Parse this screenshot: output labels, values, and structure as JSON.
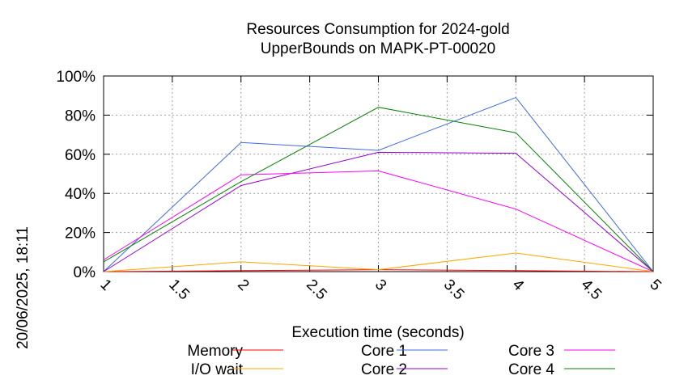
{
  "chart_data": {
    "type": "line",
    "title": [
      "Resources Consumption for 2024-gold",
      "UpperBounds on MAPK-PT-00020"
    ],
    "xlabel": "Execution time (seconds)",
    "ylabel": "",
    "side_label": "20/06/2025, 18:11",
    "xlim": [
      1,
      5
    ],
    "ylim": [
      0,
      100
    ],
    "x_ticks": [
      1,
      1.5,
      2,
      2.5,
      3,
      3.5,
      4,
      4.5,
      5
    ],
    "x_tick_labels": [
      "1",
      "1.5",
      "2",
      "2.5",
      "3",
      "3.5",
      "4",
      "4.5",
      "5"
    ],
    "y_ticks": [
      0,
      20,
      40,
      60,
      80,
      100
    ],
    "y_tick_labels": [
      "0%",
      "20%",
      "40%",
      "60%",
      "80%",
      "100%"
    ],
    "grid": true,
    "legend_position": "bottom",
    "series": [
      {
        "name": "Memory",
        "color": "#ff0000",
        "x": [
          1,
          2,
          3,
          4,
          5
        ],
        "y": [
          0,
          0.5,
          1,
          0.5,
          0
        ]
      },
      {
        "name": "I/O wait",
        "color": "#ffa500",
        "x": [
          1,
          2,
          3,
          4,
          5
        ],
        "y": [
          0,
          5,
          1,
          9.5,
          0
        ]
      },
      {
        "name": "Core 1",
        "color": "#4169e1",
        "x": [
          1,
          2,
          3,
          4,
          5
        ],
        "y": [
          0,
          66,
          62,
          89,
          0
        ]
      },
      {
        "name": "Core 2",
        "color": "#9400d3",
        "x": [
          1,
          2,
          3,
          4,
          5
        ],
        "y": [
          0,
          44,
          61,
          60.5,
          0
        ]
      },
      {
        "name": "Core 3",
        "color": "#ff00ff",
        "x": [
          1,
          2,
          3,
          4,
          5
        ],
        "y": [
          6,
          49.5,
          51.5,
          32,
          0
        ]
      },
      {
        "name": "Core 4",
        "color": "#008000",
        "x": [
          1,
          2,
          3,
          4,
          5
        ],
        "y": [
          5,
          46,
          84,
          71,
          0
        ]
      }
    ]
  }
}
